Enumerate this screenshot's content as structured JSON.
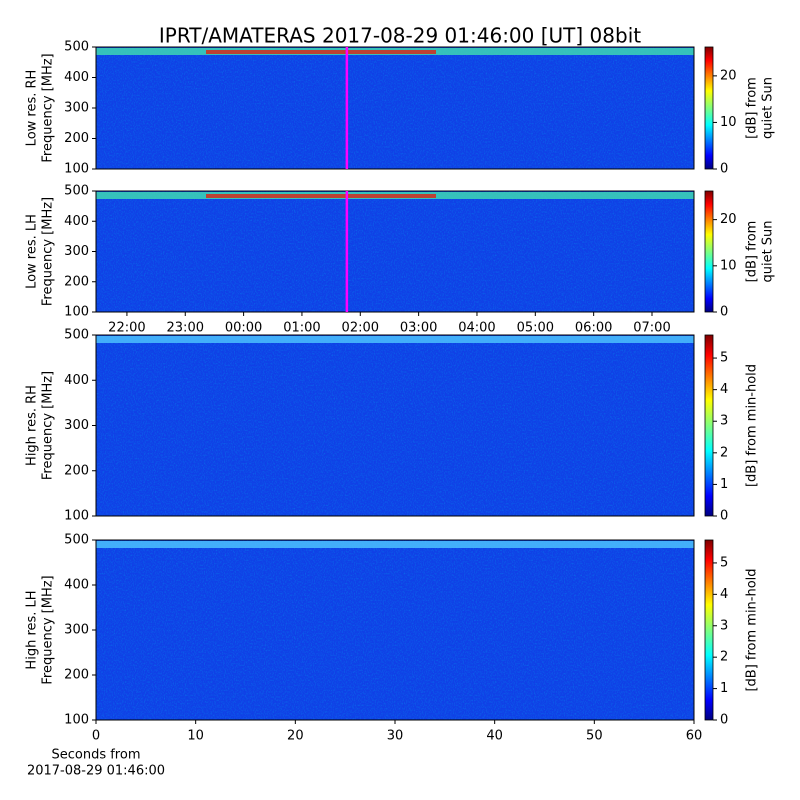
{
  "chart_data": [
    {
      "type": "spectrogram",
      "title": "IPRT/AMATERAS 2017-08-29 01:46:00 [UT]   08bit",
      "ylabel": [
        "Low res. RH",
        "Frequency [MHz]"
      ],
      "ylim": [
        100,
        500
      ],
      "yticks": [
        100,
        200,
        300,
        400,
        500
      ],
      "xlim": [
        -2.53,
        7.72
      ],
      "marker_x": 1.77,
      "marker_color": "#ff00ff",
      "colormap": "jet",
      "clim": [
        0,
        26.2
      ],
      "cticks": [
        0,
        10,
        20
      ],
      "clabel": [
        "[dB] from",
        "quiet Sun"
      ]
    },
    {
      "type": "spectrogram",
      "ylabel": [
        "Low res. LH",
        "Frequency [MHz]"
      ],
      "ylim": [
        100,
        500
      ],
      "yticks": [
        100,
        200,
        300,
        400,
        500
      ],
      "xlim": [
        -2.53,
        7.72
      ],
      "xticks": [
        {
          "value": -2,
          "label": "22:00"
        },
        {
          "value": -1,
          "label": "23:00"
        },
        {
          "value": 0,
          "label": "00:00"
        },
        {
          "value": 1,
          "label": "01:00"
        },
        {
          "value": 2,
          "label": "02:00"
        },
        {
          "value": 3,
          "label": "03:00"
        },
        {
          "value": 4,
          "label": "04:00"
        },
        {
          "value": 5,
          "label": "05:00"
        },
        {
          "value": 6,
          "label": "06:00"
        },
        {
          "value": 7,
          "label": "07:00"
        }
      ],
      "marker_x": 1.77,
      "marker_color": "#ff00ff",
      "colormap": "jet",
      "clim": [
        0,
        26.2
      ],
      "cticks": [
        0,
        10,
        20
      ],
      "clabel": [
        "[dB] from",
        "quiet Sun"
      ]
    },
    {
      "type": "spectrogram",
      "ylabel": [
        "High res. RH",
        "Frequency [MHz]"
      ],
      "ylim": [
        100,
        500
      ],
      "yticks": [
        100,
        200,
        300,
        400,
        500
      ],
      "xlim": [
        0,
        60
      ],
      "colormap": "jet",
      "clim": [
        0,
        5.73
      ],
      "cticks": [
        0,
        1,
        2,
        3,
        4,
        5
      ],
      "clabel": [
        "[dB] from min-hold"
      ]
    },
    {
      "type": "spectrogram",
      "ylabel": [
        "High res. LH",
        "Frequency [MHz]"
      ],
      "ylim": [
        100,
        500
      ],
      "yticks": [
        100,
        200,
        300,
        400,
        500
      ],
      "xlim": [
        0,
        60
      ],
      "xticks": [
        0,
        10,
        20,
        30,
        40,
        50,
        60
      ],
      "xlabel": [
        "Seconds from",
        "2017-08-29 01:46:00"
      ],
      "colormap": "jet",
      "clim": [
        0,
        5.73
      ],
      "cticks": [
        0,
        1,
        2,
        3,
        4,
        5
      ],
      "clabel": [
        "[dB] from min-hold"
      ]
    }
  ]
}
